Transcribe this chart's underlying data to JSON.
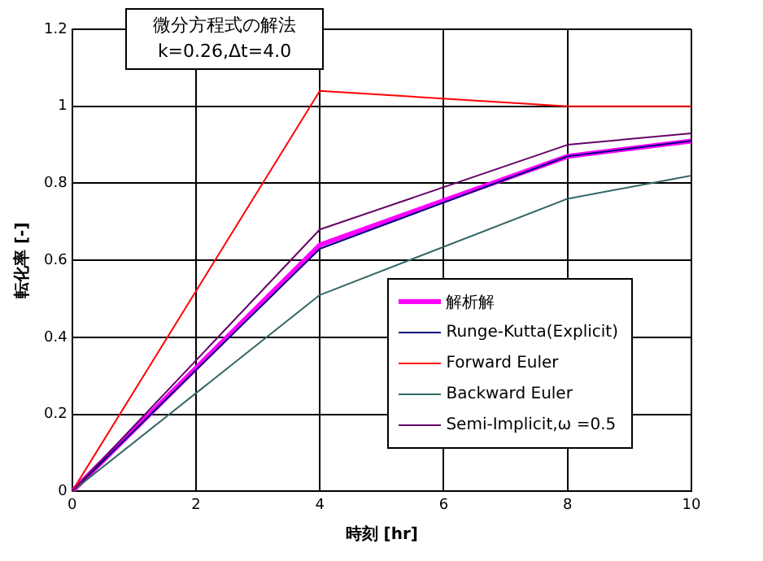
{
  "chart_data": {
    "type": "line",
    "title": "微分方程式の解法",
    "subtitle": "k=0.26,Δt=4.0",
    "xlabel": "時刻 [hr]",
    "ylabel": "転化率 [-]",
    "x": [
      0,
      4,
      8,
      10
    ],
    "series": [
      {
        "name": "解析解",
        "color": "#ff00ff",
        "values": [
          0,
          0.64,
          0.87,
          0.91
        ]
      },
      {
        "name": "Runge-Kutta(Explicit)",
        "color": "#000080",
        "values": [
          0,
          0.63,
          0.87,
          0.91
        ]
      },
      {
        "name": "Forward Euler",
        "color": "#ff0000",
        "values": [
          0,
          1.04,
          1.0,
          1.0
        ]
      },
      {
        "name": "Backward Euler",
        "color": "#336666",
        "values": [
          0,
          0.51,
          0.76,
          0.82
        ]
      },
      {
        "name": "Semi-Implicit,ω =0.5",
        "color": "#660066",
        "values": [
          0,
          0.68,
          0.9,
          0.93
        ]
      }
    ],
    "xlim": [
      0,
      10
    ],
    "xticks": [
      0,
      2,
      4,
      6,
      8,
      10
    ],
    "ylim": [
      0,
      1.2
    ],
    "yticks": [
      0,
      0.2,
      0.4,
      0.6,
      0.8,
      1,
      1.2
    ],
    "grid": true,
    "legend": "bottom right",
    "marker": "none",
    "line_style": "solid"
  }
}
